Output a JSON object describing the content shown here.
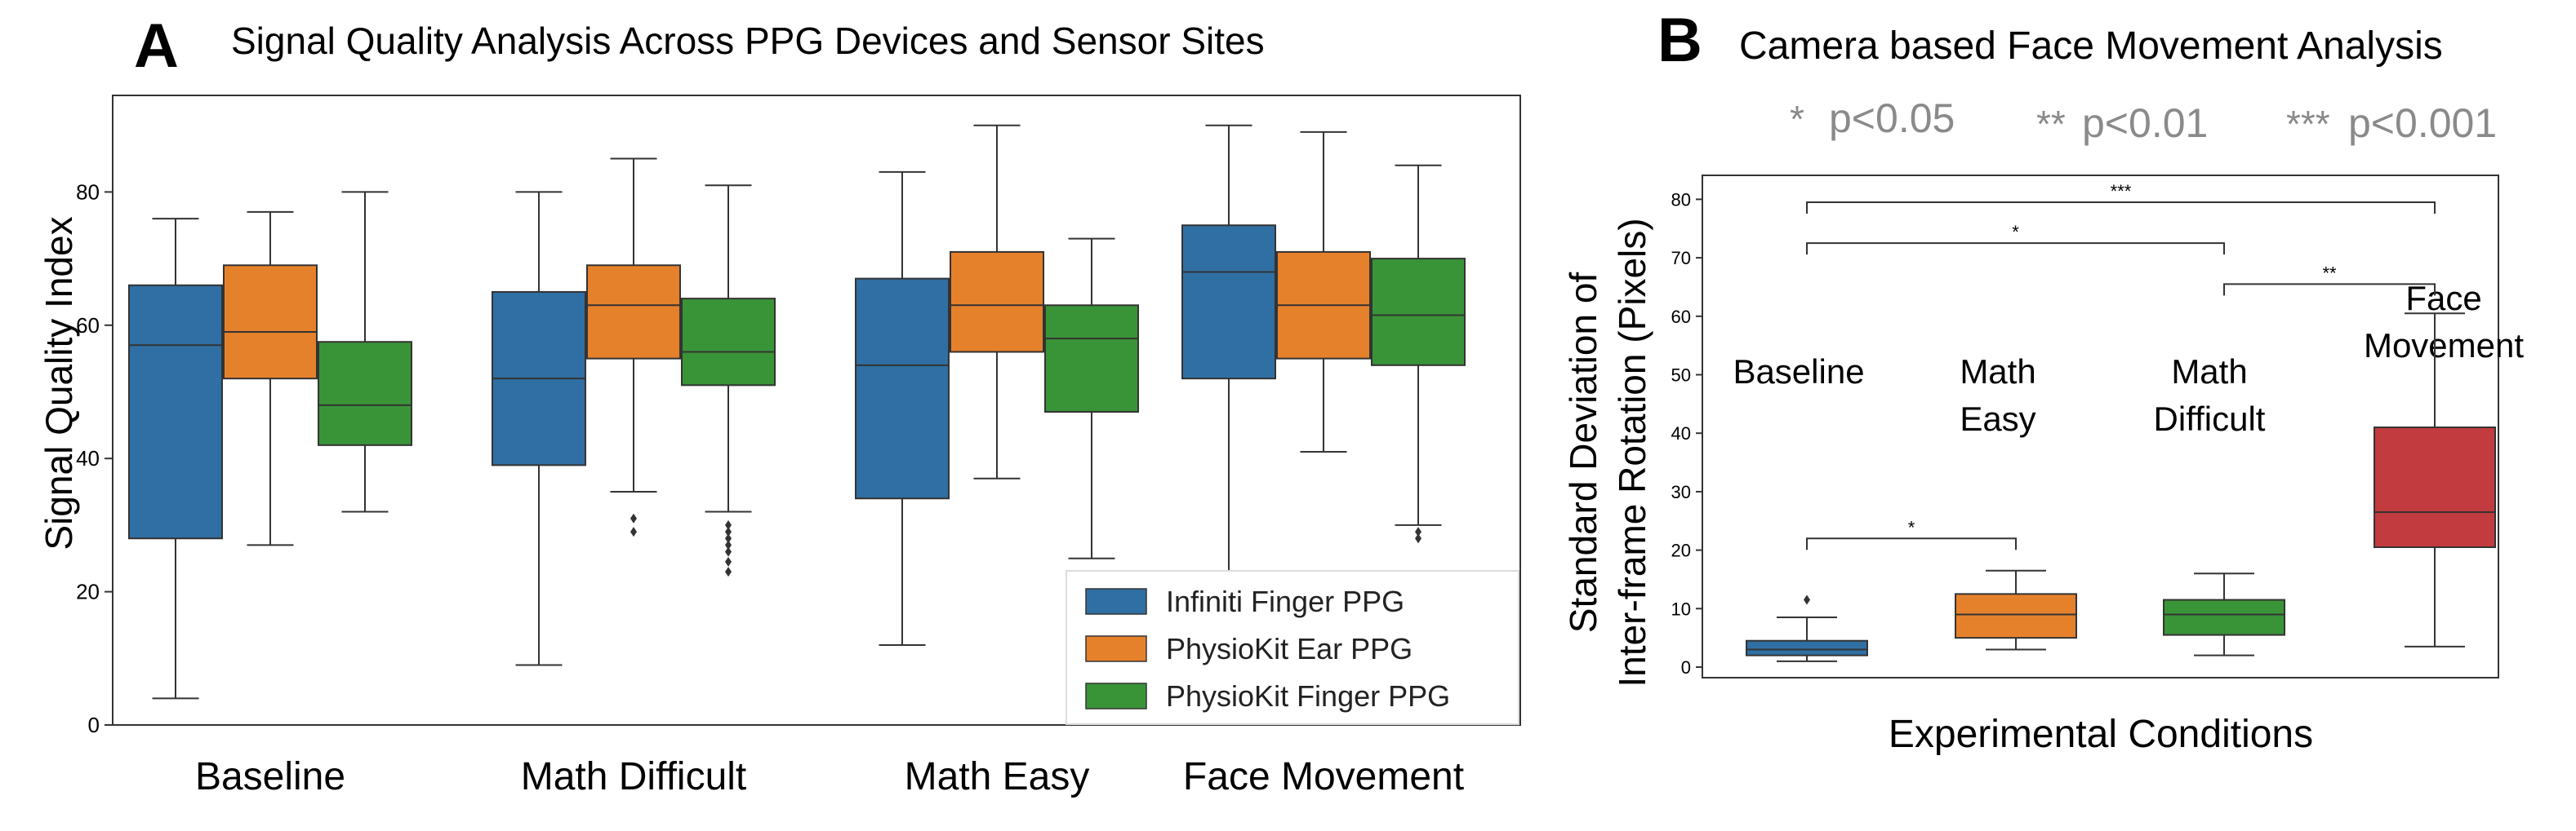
{
  "panel_a": {
    "letter": "A",
    "title": "Signal Quality Analysis Across PPG Devices and Sensor Sites"
  },
  "panel_b": {
    "letter": "B",
    "title": "Camera based Face Movement Analysis",
    "p_legend": [
      {
        "stars": "*",
        "text": "p<0.05"
      },
      {
        "stars": "**",
        "text": "p<0.01"
      },
      {
        "stars": "***",
        "text": "p<0.001"
      }
    ]
  },
  "colors": {
    "blue": "#2f6fa3",
    "orange": "#e6812b",
    "green": "#399438",
    "red": "#c23b3e",
    "p_legend_gray": "#8a8a8a"
  },
  "chart_data": [
    {
      "type": "box",
      "title": "Signal Quality Analysis Across PPG Devices and Sensor Sites",
      "ylabel": "Signal Quality Index",
      "xlabel": "",
      "ylim": [
        0,
        95
      ],
      "yticks": [
        0,
        20,
        40,
        60,
        80
      ],
      "categories": [
        "Baseline",
        "Math Difficult",
        "Math Easy",
        "Face Movement"
      ],
      "legend_position": "lower-right",
      "series": [
        {
          "name": "Infiniti Finger PPG",
          "color": "#2f6fa3",
          "boxes": [
            {
              "whislo": 4,
              "q1": 28,
              "med": 57,
              "q3": 66,
              "whishi": 76,
              "fliers": []
            },
            {
              "whislo": 9,
              "q1": 39,
              "med": 52,
              "q3": 65,
              "whishi": 80,
              "fliers": []
            },
            {
              "whislo": 12,
              "q1": 34,
              "med": 54,
              "q3": 67,
              "whishi": 83,
              "fliers": []
            },
            {
              "whislo": 22,
              "q1": 52,
              "med": 68,
              "q3": 75,
              "whishi": 90,
              "fliers": []
            }
          ]
        },
        {
          "name": "PhysioKit Ear PPG",
          "color": "#e6812b",
          "boxes": [
            {
              "whislo": 27,
              "q1": 52,
              "med": 59,
              "q3": 69,
              "whishi": 77,
              "fliers": []
            },
            {
              "whislo": 35,
              "q1": 55,
              "med": 63,
              "q3": 69,
              "whishi": 85,
              "fliers": [
                29,
                31
              ]
            },
            {
              "whislo": 37,
              "q1": 56,
              "med": 63,
              "q3": 71,
              "whishi": 90,
              "fliers": []
            },
            {
              "whislo": 41,
              "q1": 55,
              "med": 63,
              "q3": 71,
              "whishi": 89,
              "fliers": []
            }
          ]
        },
        {
          "name": "PhysioKit Finger PPG",
          "color": "#399438",
          "boxes": [
            {
              "whislo": 32,
              "q1": 42,
              "med": 48,
              "q3": 57.5,
              "whishi": 80,
              "fliers": []
            },
            {
              "whislo": 32,
              "q1": 51,
              "med": 56,
              "q3": 64,
              "whishi": 81,
              "fliers": [
                23,
                24.5,
                26,
                27,
                28,
                29,
                30
              ]
            },
            {
              "whislo": 25,
              "q1": 47,
              "med": 58,
              "q3": 63,
              "whishi": 73,
              "fliers": []
            },
            {
              "whislo": 30,
              "q1": 54,
              "med": 61.5,
              "q3": 70,
              "whishi": 84,
              "fliers": [
                28,
                29
              ]
            }
          ]
        }
      ]
    },
    {
      "type": "box",
      "title": "Camera based Face Movement Analysis",
      "ylabel": "Standard Deviation of Inter-frame Rotation (Pixels)",
      "xlabel": "Experimental Conditions",
      "ylim": [
        -2,
        83
      ],
      "yticks": [
        0,
        10,
        20,
        30,
        40,
        50,
        60,
        70,
        80
      ],
      "categories": [
        "Baseline",
        "Math Easy",
        "Math Difficult",
        "Face Movement"
      ],
      "category_annotations": [
        {
          "category": "Baseline",
          "lines": [
            "Baseline"
          ]
        },
        {
          "category": "Math Easy",
          "lines": [
            "Math",
            "Easy"
          ]
        },
        {
          "category": "Math Difficult",
          "lines": [
            "Math",
            "Difficult"
          ]
        },
        {
          "category": "Face Movement",
          "lines": [
            "Face",
            "Movement"
          ]
        }
      ],
      "boxes": [
        {
          "category": "Baseline",
          "color": "#2f6fa3",
          "whislo": 1,
          "q1": 2,
          "med": 3,
          "q3": 4.5,
          "whishi": 8.5,
          "fliers": [
            11.5
          ]
        },
        {
          "category": "Math Easy",
          "color": "#e6812b",
          "whislo": 3,
          "q1": 5,
          "med": 9,
          "q3": 12.5,
          "whishi": 16.5,
          "fliers": []
        },
        {
          "category": "Math Difficult",
          "color": "#399438",
          "whislo": 2,
          "q1": 5.5,
          "med": 9,
          "q3": 11.5,
          "whishi": 16,
          "fliers": []
        },
        {
          "category": "Face Movement",
          "color": "#c23b3e",
          "whislo": 3.5,
          "q1": 20.5,
          "med": 26.5,
          "q3": 41,
          "whishi": 60.5,
          "fliers": []
        }
      ],
      "significance": [
        {
          "from": "Baseline",
          "to": "Face Movement",
          "y": 79.5,
          "label": "***"
        },
        {
          "from": "Baseline",
          "to": "Math Difficult",
          "y": 72.5,
          "label": "*"
        },
        {
          "from": "Math Difficult",
          "to": "Face Movement",
          "y": 65.5,
          "label": "**"
        },
        {
          "from": "Baseline",
          "to": "Math Easy",
          "y": 22,
          "label": "*"
        }
      ]
    }
  ]
}
